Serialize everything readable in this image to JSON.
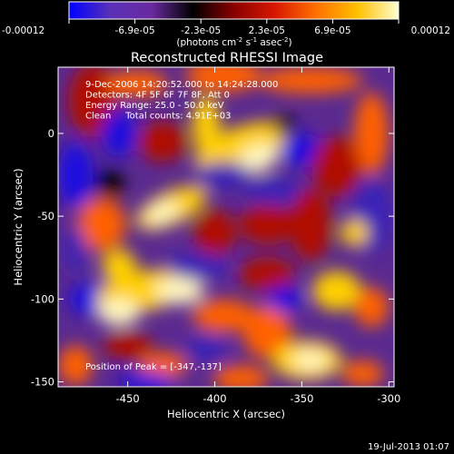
{
  "chart_data": {
    "type": "heatmap",
    "title": "Reconstructed RHESSI Image",
    "xlabel": "Heliocentric X (arcsec)",
    "ylabel": "Heliocentric Y (arcsec)",
    "xlim": [
      -490,
      -297
    ],
    "ylim": [
      -153,
      40
    ],
    "x_ticks": [
      -450,
      -400,
      -350,
      -300
    ],
    "y_ticks": [
      0,
      -50,
      -100,
      -150
    ],
    "colorbar": {
      "ticks": [
        "-0.00012",
        "-6.9e-05",
        "-2.3e-05",
        "2.3e-05",
        "6.9e-05",
        "0.00012"
      ],
      "unit_base": "(photons cm",
      "unit_exp1": "-2",
      "unit_mid": " s",
      "unit_exp2": "-1",
      "unit_end": " asec",
      "unit_exp3": "-2",
      "unit_close": ")",
      "range": [
        -0.00012,
        0.00012
      ]
    },
    "annotations": [
      "9-Dec-2006 14:20:52.000 to 14:24:28.000",
      "Detectors: 4F 5F 6F 7F 8F, Att 0",
      "Energy Range: 25.0 - 50.0 keV",
      "Clean     Total counts: 4.91E+03"
    ],
    "peak_label": "Position of Peak = [-347,-137]",
    "peak": [
      -347,
      -137
    ],
    "timestamp": "19-Jul-2013 01:07",
    "colors": {
      "colormap": [
        "#0000ff",
        "#5a30b8",
        "#6a2aa0",
        "#000000",
        "#8a0000",
        "#d81800",
        "#ff7000",
        "#ffc000",
        "#ffffd0"
      ],
      "background": "#000000",
      "text": "#ffffff"
    }
  }
}
